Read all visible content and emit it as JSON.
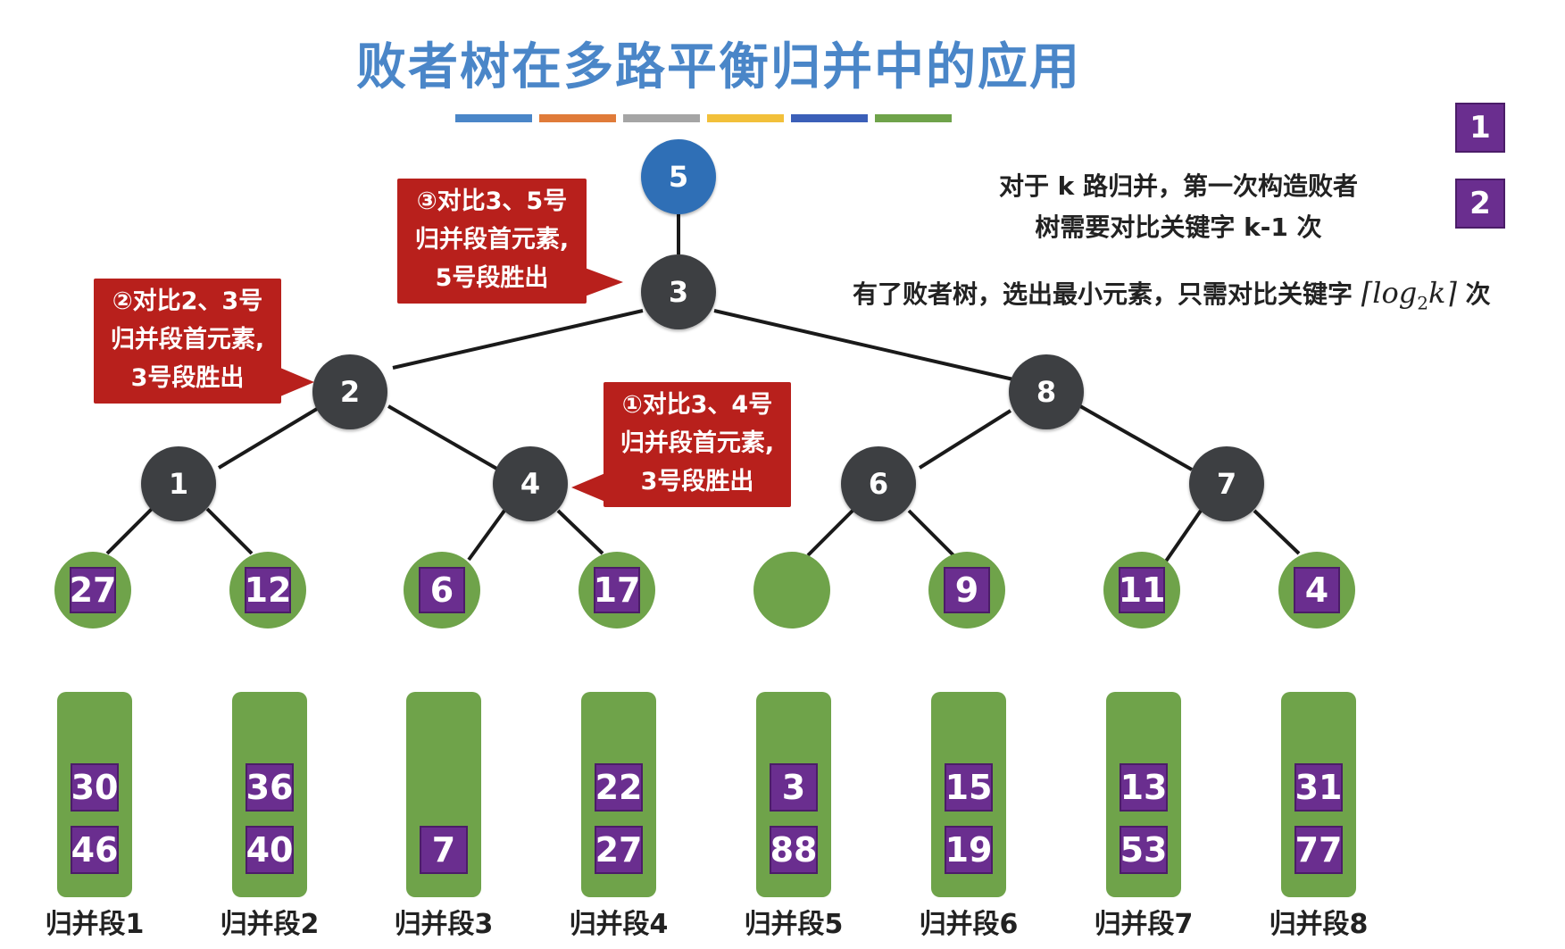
{
  "title": "败者树在多路平衡归并中的应用",
  "title_bar_colors": [
    "#4a86c8",
    "#e07b39",
    "#a5a5a5",
    "#f2c03a",
    "#3b5fb8",
    "#6fa34a"
  ],
  "colors": {
    "node": "#3d3f42",
    "root": "#2f6fb6",
    "leaf": "#6fa34a",
    "key": "#6a2e8f",
    "callout": "#b8201c"
  },
  "tree": {
    "root": "5",
    "level1": "3",
    "level2": [
      "2",
      "8"
    ],
    "level3": [
      "1",
      "4",
      "6",
      "7"
    ]
  },
  "leaves": [
    "27",
    "12",
    "6",
    "17",
    "",
    "9",
    "11",
    "4"
  ],
  "segments": [
    {
      "label": "归并段1",
      "keys": [
        "30",
        "46"
      ]
    },
    {
      "label": "归并段2",
      "keys": [
        "36",
        "40"
      ]
    },
    {
      "label": "归并段3",
      "keys": [
        "7"
      ]
    },
    {
      "label": "归并段4",
      "keys": [
        "22",
        "27"
      ]
    },
    {
      "label": "归并段5",
      "keys": [
        "3",
        "88"
      ]
    },
    {
      "label": "归并段6",
      "keys": [
        "15",
        "19"
      ]
    },
    {
      "label": "归并段7",
      "keys": [
        "13",
        "53"
      ]
    },
    {
      "label": "归并段8",
      "keys": [
        "31",
        "77"
      ]
    }
  ],
  "callouts": {
    "c3": [
      "③对比3、5号",
      "归并段首元素,",
      "5号段胜出"
    ],
    "c2": [
      "②对比2、3号",
      "归并段首元素,",
      "3号段胜出"
    ],
    "c1": [
      "①对比3、4号",
      "归并段首元素,",
      "3号段胜出"
    ]
  },
  "legend": [
    "1",
    "2"
  ],
  "notes": {
    "line1": "对于 k 路归并，第一次构造败者",
    "line2": "树需要对比关键字 k-1 次",
    "line3_prefix": "有了败者树，选出最小元素，只需对比关键字",
    "formula_base": "log",
    "formula_sub": "2",
    "formula_var": "k",
    "line3_suffix": "次"
  }
}
